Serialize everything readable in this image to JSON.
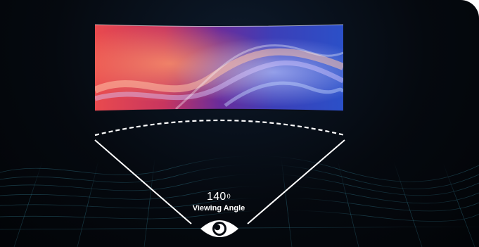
{
  "viewing_angle": {
    "value": "140",
    "unit": "0",
    "label": "Viewing Angle",
    "icon": "eye-icon"
  },
  "colors": {
    "background": "#05090f",
    "line": "#ffffff",
    "grid": "#1c4a5a"
  }
}
